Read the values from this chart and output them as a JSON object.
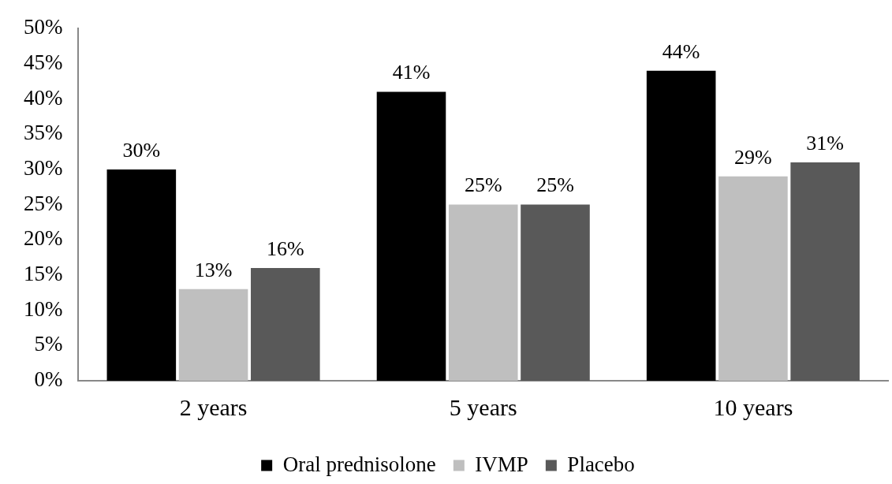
{
  "chart_data": {
    "type": "bar",
    "categories": [
      "2 years",
      "5 years",
      "10 years"
    ],
    "series": [
      {
        "name": "Oral prednisolone",
        "color": "#000000",
        "values": [
          30,
          41,
          44
        ],
        "value_labels": [
          "30%",
          "41%",
          "44%"
        ]
      },
      {
        "name": "IVMP",
        "color": "#bfbfbf",
        "values": [
          13,
          25,
          29
        ],
        "value_labels": [
          "13%",
          "25%",
          "29%"
        ]
      },
      {
        "name": "Placebo",
        "color": "#595959",
        "values": [
          16,
          25,
          31
        ],
        "value_labels": [
          "16%",
          "25%",
          "31%"
        ]
      }
    ],
    "ylim": [
      0,
      50
    ],
    "yticks": [
      {
        "value": 0,
        "label": "0%"
      },
      {
        "value": 5,
        "label": "5%"
      },
      {
        "value": 10,
        "label": "10%"
      },
      {
        "value": 15,
        "label": "15%"
      },
      {
        "value": 20,
        "label": "20%"
      },
      {
        "value": 25,
        "label": "25%"
      },
      {
        "value": 30,
        "label": "30%"
      },
      {
        "value": 35,
        "label": "35%"
      },
      {
        "value": 40,
        "label": "40%"
      },
      {
        "value": 45,
        "label": "45%"
      },
      {
        "value": 50,
        "label": "50%"
      }
    ],
    "grid": false,
    "legend": "bottom"
  }
}
